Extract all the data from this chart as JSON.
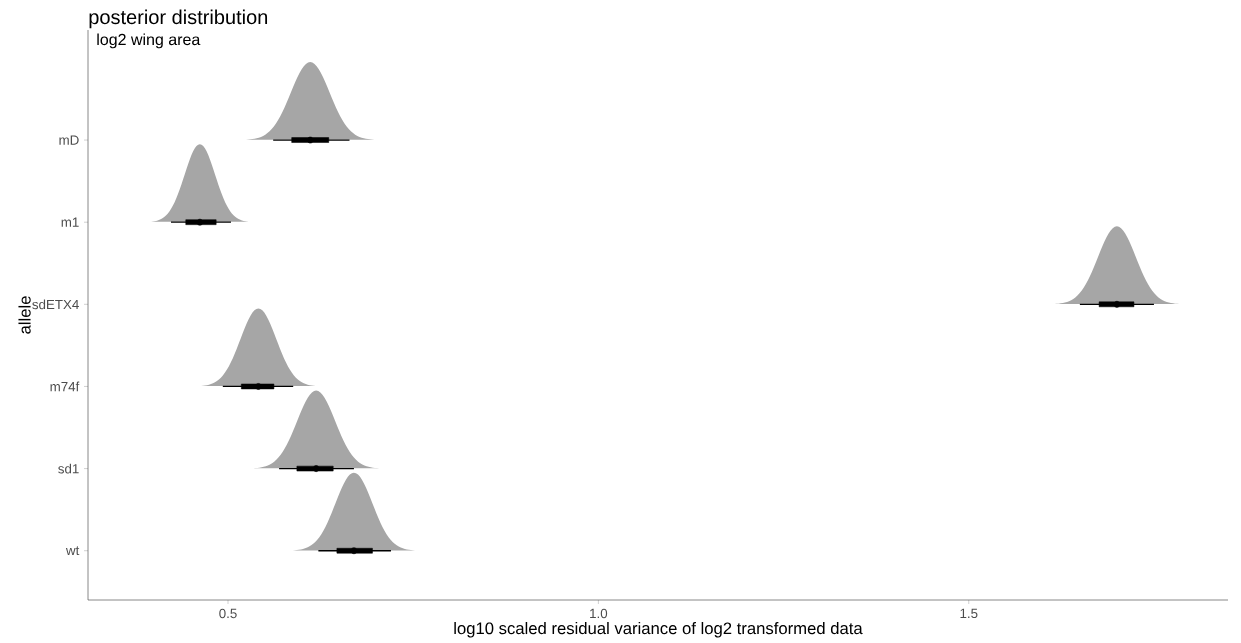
{
  "chart_data": {
    "type": "box",
    "orientation": "horizontal",
    "title": "posterior distribution",
    "subtitle": "log2 wing area",
    "xlabel": "log10 scaled residual variance of log2 transformed data",
    "ylabel": "allele",
    "color": "#000000",
    "categories": [
      "mD",
      "m1",
      "sdETX4",
      "m74f",
      "sd1",
      "wt"
    ],
    "boxes": [
      {
        "low": 0.561,
        "q1": 0.586,
        "median": 0.611,
        "q3": 0.636,
        "high": 0.664
      },
      {
        "low": 0.423,
        "q1": 0.443,
        "median": 0.462,
        "q3": 0.484,
        "high": 0.504
      },
      {
        "low": 1.65,
        "q1": 1.676,
        "median": 1.7,
        "q3": 1.723,
        "high": 1.75
      },
      {
        "low": 0.493,
        "q1": 0.518,
        "median": 0.541,
        "q3": 0.562,
        "high": 0.588
      },
      {
        "low": 0.569,
        "q1": 0.593,
        "median": 0.619,
        "q3": 0.642,
        "high": 0.67
      },
      {
        "low": 0.622,
        "q1": 0.647,
        "median": 0.67,
        "q3": 0.695,
        "high": 0.72
      }
    ],
    "xlim": [
      0.311,
      1.85
    ],
    "xticks": [
      0.5,
      {
        "value": 1,
        "label": "1.0"
      },
      1.5
    ]
  }
}
